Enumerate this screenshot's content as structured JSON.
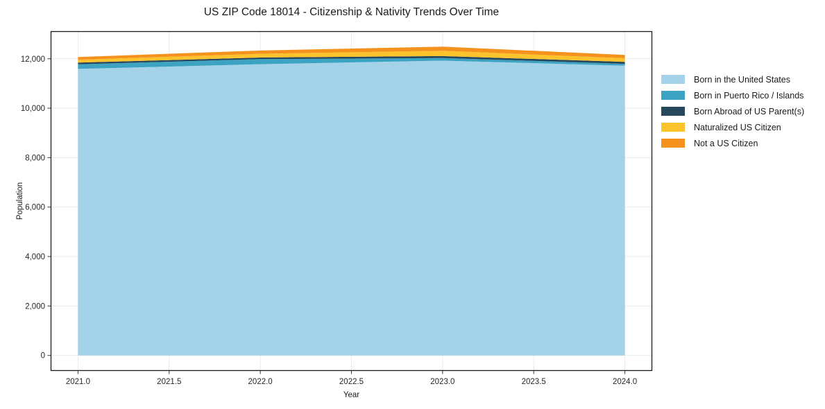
{
  "title": "US ZIP Code 18014 - Citizenship & Nativity Trends Over Time",
  "chart_data": {
    "type": "area",
    "stacked": true,
    "title": "US ZIP Code 18014 - Citizenship & Nativity Trends Over Time",
    "xlabel": "Year",
    "ylabel": "Population",
    "x": [
      2021,
      2022,
      2023,
      2024
    ],
    "series": [
      {
        "name": "Born in the United States",
        "color": "#A4D3E9",
        "values": [
          11590,
          11780,
          11925,
          11720
        ]
      },
      {
        "name": "Born in Puerto Rico / Islands",
        "color": "#3DA3C2",
        "values": [
          185,
          205,
          105,
          75
        ]
      },
      {
        "name": "Born Abroad of US Parent(s)",
        "color": "#27485C",
        "values": [
          70,
          65,
          80,
          80
        ]
      },
      {
        "name": "Naturalized US Citizen",
        "color": "#FCC32D",
        "values": [
          115,
          150,
          215,
          145
        ]
      },
      {
        "name": "Not a US Citizen",
        "color": "#F5921E",
        "values": [
          110,
          135,
          165,
          135
        ]
      }
    ],
    "totals": [
      12070,
      12335,
      12490,
      12155
    ],
    "xlim": [
      2020.85,
      2024.15
    ],
    "ylim": [
      -625,
      13115
    ],
    "x_ticks": [
      {
        "value": 2021.0,
        "label": "2021.0"
      },
      {
        "value": 2021.5,
        "label": "2021.5"
      },
      {
        "value": 2022.0,
        "label": "2022.0"
      },
      {
        "value": 2022.5,
        "label": "2022.5"
      },
      {
        "value": 2023.0,
        "label": "2023.0"
      },
      {
        "value": 2023.5,
        "label": "2023.5"
      },
      {
        "value": 2024.0,
        "label": "2024.0"
      }
    ],
    "y_ticks": [
      {
        "value": 0,
        "label": "0"
      },
      {
        "value": 2000,
        "label": "2,000"
      },
      {
        "value": 4000,
        "label": "4,000"
      },
      {
        "value": 6000,
        "label": "6,000"
      },
      {
        "value": 8000,
        "label": "8,000"
      },
      {
        "value": 10000,
        "label": "10,000"
      },
      {
        "value": 12000,
        "label": "12,000"
      }
    ],
    "grid": true,
    "legend_position": "right-outside",
    "colors": {
      "grid": "#EBEBEB",
      "spine": "#1A1A1A",
      "tick_mark": "#333333",
      "tick_text": "#262626"
    }
  }
}
